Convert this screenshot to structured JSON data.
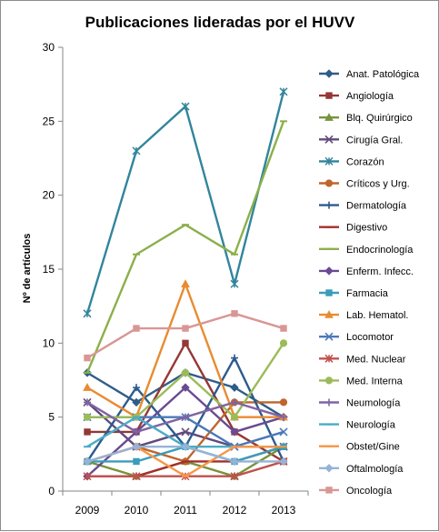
{
  "chart_data": {
    "type": "line",
    "title": "Publicaciones lideradas por el HUVV",
    "xlabel": "",
    "ylabel": "Nº de artículos",
    "categories": [
      "2009",
      "2010",
      "2011",
      "2012",
      "2013"
    ],
    "ylim": [
      0,
      30
    ],
    "yticks": [
      0,
      5,
      10,
      15,
      20,
      25,
      30
    ],
    "grid": false,
    "legend_position": "right",
    "series": [
      {
        "name": "Anat. Patológica",
        "color": "#2e5d8a",
        "marker": "diamond",
        "values": [
          8,
          6,
          8,
          7,
          5
        ]
      },
      {
        "name": "Angiología",
        "color": "#953735",
        "marker": "square",
        "values": [
          4,
          4,
          10,
          4,
          2
        ]
      },
      {
        "name": "Blq. Quirúrgico",
        "color": "#77933c",
        "marker": "triangle",
        "values": [
          2,
          1,
          2,
          1,
          3
        ]
      },
      {
        "name": "Cirugía Gral.",
        "color": "#604a7b",
        "marker": "x",
        "values": [
          6,
          3,
          4,
          3,
          3
        ]
      },
      {
        "name": "Corazón",
        "color": "#31859c",
        "marker": "star",
        "values": [
          12,
          23,
          26,
          14,
          27
        ]
      },
      {
        "name": "Críticos y Urg.",
        "color": "#c0652c",
        "marker": "circle",
        "values": [
          2,
          3,
          2,
          6,
          6
        ]
      },
      {
        "name": "Dermatología",
        "color": "#2c5b8e",
        "marker": "plus",
        "values": [
          2,
          7,
          3,
          9,
          2
        ]
      },
      {
        "name": "Digestivo",
        "color": "#a0302c",
        "marker": "dash",
        "values": [
          1,
          1,
          2,
          2,
          3
        ]
      },
      {
        "name": "Endocrinología",
        "color": "#8bb04b",
        "marker": "dash",
        "values": [
          8,
          16,
          18,
          16,
          25
        ]
      },
      {
        "name": "Enferm. Infecc.",
        "color": "#6a4a92",
        "marker": "diamond",
        "values": [
          1,
          4,
          7,
          4,
          5
        ]
      },
      {
        "name": "Farmacia",
        "color": "#3a9db9",
        "marker": "square",
        "values": [
          2,
          2,
          3,
          2,
          3
        ]
      },
      {
        "name": "Lab. Hematol.",
        "color": "#e98b30",
        "marker": "triangle",
        "values": [
          7,
          5,
          14,
          5,
          5
        ]
      },
      {
        "name": "Locomotor",
        "color": "#4a79b8",
        "marker": "x",
        "values": [
          5,
          5,
          5,
          3,
          4
        ]
      },
      {
        "name": "Med. Nuclear",
        "color": "#c0504d",
        "marker": "star",
        "values": [
          1,
          1,
          1,
          1,
          2
        ]
      },
      {
        "name": "Med. Interna",
        "color": "#9bbb59",
        "marker": "circle",
        "values": [
          5,
          5,
          8,
          5,
          10
        ]
      },
      {
        "name": "Neumología",
        "color": "#8064a2",
        "marker": "plus",
        "values": [
          6,
          4,
          5,
          6,
          5
        ]
      },
      {
        "name": "Neurología",
        "color": "#4bacc6",
        "marker": "dash",
        "values": [
          3,
          5,
          3,
          3,
          3
        ]
      },
      {
        "name": "Obstet/Gine",
        "color": "#f79646",
        "marker": "dash",
        "values": [
          2,
          3,
          1,
          3,
          3
        ]
      },
      {
        "name": "Oftalmología",
        "color": "#95b3d7",
        "marker": "diamond",
        "values": [
          2,
          3,
          3,
          2,
          2
        ]
      },
      {
        "name": "Oncología",
        "color": "#d99694",
        "marker": "square",
        "values": [
          9,
          11,
          11,
          12,
          11
        ]
      }
    ]
  }
}
